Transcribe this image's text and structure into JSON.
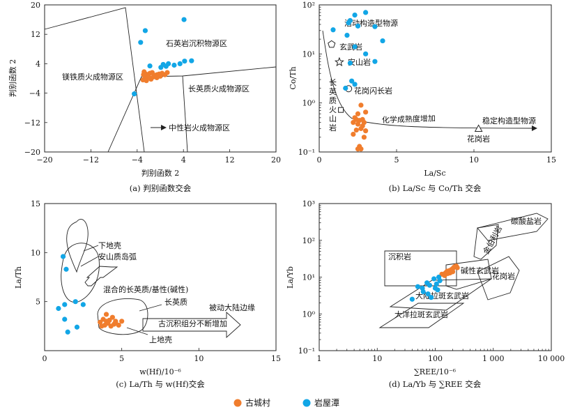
{
  "legend": {
    "series_a": "古城村",
    "series_a_color": "#F07D2D",
    "series_b": "岩屋潭",
    "series_b_color": "#12A6E6"
  },
  "chart_data": [
    {
      "id": "a",
      "type": "scatter",
      "caption": "(a) 判别函数交会",
      "xlabel": "判别函数 2",
      "ylabel": "判别函数 2",
      "xlim": [
        -20,
        20
      ],
      "ylim": [
        -20,
        20
      ],
      "xticks": [
        "−20",
        "−12",
        "−4",
        "4",
        "12",
        "20"
      ],
      "yticks": [
        "20",
        "12",
        "4",
        "−4",
        "−12",
        "−20"
      ],
      "regions": [
        "石英岩沉积物源区",
        "镁铁质火成物源区",
        "长英质火成物源区",
        "中性岩火成物源区"
      ],
      "series": [
        {
          "name": "古城村",
          "points": [
            [
              -2.8,
              1.8
            ],
            [
              -2.5,
              1.2
            ],
            [
              -2.2,
              1.0
            ],
            [
              -1.8,
              1.4
            ],
            [
              -1.4,
              1.6
            ],
            [
              -1.0,
              0.8
            ],
            [
              -0.6,
              1.0
            ],
            [
              -0.2,
              1.2
            ],
            [
              0.3,
              1.4
            ],
            [
              0.8,
              1.0
            ],
            [
              -2.6,
              0.2
            ],
            [
              -2.0,
              0.4
            ],
            [
              -1.2,
              0.4
            ],
            [
              -0.6,
              0.2
            ],
            [
              -3.0,
              -0.4
            ],
            [
              -2.4,
              -0.6
            ],
            [
              -1.6,
              -0.2
            ],
            [
              1.2,
              1.6
            ],
            [
              -2.9,
              1.0
            ],
            [
              0.0,
              0.6
            ]
          ]
        },
        {
          "name": "岩屋潭",
          "points": [
            [
              -4.5,
              -4.2
            ],
            [
              -3.4,
              9.8
            ],
            [
              -2.6,
              13.0
            ],
            [
              -1.8,
              3.4
            ],
            [
              0.5,
              3.8
            ],
            [
              0.1,
              3.0
            ],
            [
              1.0,
              3.3
            ],
            [
              1.4,
              4.0
            ],
            [
              2.4,
              3.6
            ],
            [
              3.4,
              4.0
            ],
            [
              4.2,
              4.7
            ],
            [
              5.4,
              4.8
            ],
            [
              4.1,
              16.0
            ]
          ]
        }
      ]
    },
    {
      "id": "b",
      "type": "scatter",
      "caption": "(b) La/Sc 与 Co/Th 交会",
      "xlabel": "La/Sc",
      "ylabel": "Co/Th",
      "xlim": [
        0,
        15
      ],
      "ylim_log": [
        0.1,
        100
      ],
      "xticks": [
        "0",
        "5",
        "10",
        "15"
      ],
      "yticks": [
        "10²",
        "10¹",
        "10⁰",
        "10⁻¹"
      ],
      "labels": [
        "活动构造型物源",
        "玄武岩",
        "安山岩",
        "花岗闪长岩",
        "长英质火山岩",
        "化学成熟度增加",
        "稳定构造型物源",
        "花岗岩"
      ],
      "references": [
        {
          "name": "玄武岩",
          "x": 0.8,
          "y": 15.8
        },
        {
          "name": "安山岩",
          "x": 1.3,
          "y": 6.8
        },
        {
          "name": "花岗闪长岩",
          "x": 1.9,
          "y": 1.95
        },
        {
          "name": "长英质火山岩",
          "x": 1.4,
          "y": 0.72
        },
        {
          "name": "花岗岩",
          "x": 10.3,
          "y": 0.3
        }
      ],
      "series": [
        {
          "name": "古城村",
          "points": [
            [
              2.7,
              0.9
            ],
            [
              2.5,
              0.6
            ],
            [
              3.0,
              0.65
            ],
            [
              2.3,
              0.5
            ],
            [
              2.4,
              0.46
            ],
            [
              2.6,
              0.44
            ],
            [
              2.8,
              0.46
            ],
            [
              2.9,
              0.4
            ],
            [
              2.2,
              0.4
            ],
            [
              2.5,
              0.37
            ],
            [
              2.8,
              0.34
            ],
            [
              2.7,
              0.3
            ],
            [
              3.0,
              0.27
            ],
            [
              2.4,
              0.28
            ],
            [
              2.2,
              0.23
            ],
            [
              2.9,
              0.2
            ],
            [
              2.6,
              0.13
            ],
            [
              2.5,
              0.115
            ],
            [
              2.7,
              0.115
            ]
          ]
        },
        {
          "name": "岩屋潭",
          "points": [
            [
              2.0,
              48
            ],
            [
              2.3,
              62
            ],
            [
              3.0,
              70
            ],
            [
              1.9,
              43
            ],
            [
              2.5,
              37
            ],
            [
              3.6,
              36
            ],
            [
              0.9,
              31
            ],
            [
              1.8,
              24
            ],
            [
              4.1,
              18.5
            ],
            [
              2.3,
              14
            ],
            [
              3.0,
              10
            ],
            [
              3.6,
              7
            ],
            [
              2.0,
              6.5
            ],
            [
              2.1,
              2.8
            ],
            [
              2.3,
              2.4
            ],
            [
              1.7,
              2.0
            ]
          ]
        }
      ]
    },
    {
      "id": "c",
      "type": "scatter",
      "caption": "(c) La/Th 与 w(Hf)交会",
      "xlabel": "w(Hf)/10⁻⁶",
      "ylabel": "La/Th",
      "xlim": [
        0,
        15
      ],
      "ylim": [
        0,
        15
      ],
      "xticks": [
        "0",
        "5",
        "10",
        "15"
      ],
      "yticks": [
        "15",
        "10",
        "5"
      ],
      "labels": [
        "下地壳",
        "安山质岛弧",
        "混合的长英质/基性(碱性)",
        "长英质",
        "被动大陆边缘",
        "古沉积组分不断增加",
        "上地壳"
      ],
      "series": [
        {
          "name": "古城村",
          "points": [
            [
              4.0,
              3.7
            ],
            [
              4.4,
              3.4
            ],
            [
              3.8,
              3.2
            ],
            [
              4.2,
              3.1
            ],
            [
              4.6,
              3.0
            ],
            [
              5.0,
              3.0
            ],
            [
              3.6,
              2.9
            ],
            [
              4.1,
              2.8
            ],
            [
              4.5,
              2.7
            ],
            [
              4.8,
              2.6
            ],
            [
              3.9,
              2.6
            ],
            [
              4.3,
              2.5
            ],
            [
              3.7,
              2.5
            ],
            [
              4.6,
              2.9
            ],
            [
              4.0,
              3.0
            ]
          ]
        },
        {
          "name": "岩屋潭",
          "points": [
            [
              1.2,
              9.6
            ],
            [
              1.4,
              8.3
            ],
            [
              0.9,
              4.3
            ],
            [
              1.3,
              4.7
            ],
            [
              2.0,
              5.0
            ],
            [
              2.5,
              4.7
            ],
            [
              1.3,
              3.2
            ],
            [
              2.1,
              2.4
            ],
            [
              1.5,
              1.9
            ]
          ]
        }
      ]
    },
    {
      "id": "d",
      "type": "scatter",
      "caption": "(d) La/Yb 与 ∑REE 交会",
      "xlabel": "∑REE/10⁻⁶",
      "ylabel": "La/Yb",
      "xlim_log": [
        1,
        10000
      ],
      "ylim_log": [
        0.1,
        1000
      ],
      "xticks": [
        "1",
        "10",
        "100",
        "1 000",
        "10 000"
      ],
      "yticks": [
        "10³",
        "10²",
        "10¹",
        "10⁰",
        "10⁻¹"
      ],
      "labels": [
        "碳酸盐岩",
        "金伯利岩",
        "沉积岩",
        "碱性玄武岩",
        "花岗岩",
        "大陆拉斑玄武岩",
        "大洋拉斑玄武岩"
      ],
      "series": [
        {
          "name": "古城村",
          "points": [
            [
              130,
              12
            ],
            [
              150,
              13
            ],
            [
              160,
              14.5
            ],
            [
              175,
              15
            ],
            [
              190,
              16
            ],
            [
              200,
              17
            ],
            [
              210,
              18.5
            ],
            [
              220,
              19.5
            ],
            [
              230,
              20
            ],
            [
              240,
              18
            ],
            [
              180,
              13
            ],
            [
              145,
              11
            ],
            [
              200,
              14
            ],
            [
              165,
              12.5
            ]
          ]
        },
        {
          "name": "岩屋潭",
          "points": [
            [
              50,
              5.5
            ],
            [
              60,
              5
            ],
            [
              72,
              7
            ],
            [
              80,
              6
            ],
            [
              95,
              9
            ],
            [
              100,
              5
            ],
            [
              110,
              4.5
            ],
            [
              120,
              8
            ],
            [
              62,
              4
            ],
            [
              75,
              3.5
            ],
            [
              85,
              2.8
            ],
            [
              40,
              2.5
            ],
            [
              115,
              10
            ],
            [
              105,
              6.5
            ]
          ]
        }
      ]
    }
  ]
}
